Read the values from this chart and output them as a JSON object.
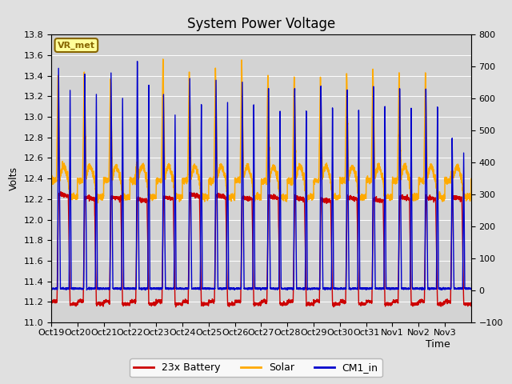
{
  "title": "System Power Voltage",
  "xlabel": "Time",
  "ylabel_left": "Volts",
  "ylim_left": [
    11.0,
    13.8
  ],
  "ylim_right": [
    -100,
    800
  ],
  "yticks_left": [
    11.0,
    11.2,
    11.4,
    11.6,
    11.8,
    12.0,
    12.2,
    12.4,
    12.6,
    12.8,
    13.0,
    13.2,
    13.4,
    13.6,
    13.8
  ],
  "yticks_right": [
    -100,
    0,
    100,
    200,
    300,
    400,
    500,
    600,
    700,
    800
  ],
  "xtick_labels": [
    "Oct 19",
    "Oct 20",
    "Oct 21",
    "Oct 22",
    "Oct 23",
    "Oct 24",
    "Oct 25",
    "Oct 26",
    "Oct 27",
    "Oct 28",
    "Oct 29",
    "Oct 30",
    "Oct 31",
    "Nov 1",
    "Nov 2",
    "Nov 3"
  ],
  "n_days": 16,
  "color_battery": "#cc0000",
  "color_solar": "#ffaa00",
  "color_cm1": "#0000cc",
  "bg_color": "#e0e0e0",
  "plot_bg_color": "#d3d3d3",
  "grid_color": "#ffffff",
  "legend_labels": [
    "23x Battery",
    "Solar",
    "CM1_in"
  ],
  "vr_met_label": "VR_met",
  "vr_met_bg": "#ffff99",
  "vr_met_border": "#886600",
  "title_fontsize": 12,
  "axis_fontsize": 9,
  "tick_fontsize": 8,
  "legend_fontsize": 9
}
